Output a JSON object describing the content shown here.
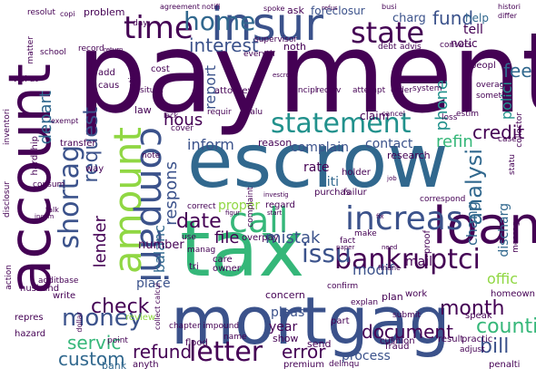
{
  "palette": {
    "background": "#ffffff",
    "purple": "#440154",
    "indigo": "#3b528b",
    "blue": "#31688e",
    "teal": "#21918c",
    "green": "#35b779",
    "lime": "#90d743",
    "yellow": "#fde725"
  },
  "words": [
    {
      "text": "payment",
      "color": "#440154"
    },
    {
      "text": "escrow",
      "color": "#31688e"
    },
    {
      "text": "mortgag",
      "color": "#3b528b"
    },
    {
      "text": "tax",
      "color": "#35b779"
    },
    {
      "text": "account",
      "color": "#440154"
    },
    {
      "text": "insur",
      "color": "#3b528b"
    },
    {
      "text": "loan",
      "color": "#440154"
    },
    {
      "text": "amount",
      "color": "#90d743"
    },
    {
      "text": "compani",
      "color": "#3b528b"
    },
    {
      "text": "call",
      "color": "#35b779"
    },
    {
      "text": "increas",
      "color": "#3b528b"
    },
    {
      "text": "statement",
      "color": "#21918c"
    },
    {
      "text": "state",
      "color": "#440154"
    },
    {
      "text": "time",
      "color": "#440154"
    },
    {
      "text": "home",
      "color": "#31688e"
    },
    {
      "text": "shortag",
      "color": "#3b528b"
    },
    {
      "text": "bankruptci",
      "color": "#440154"
    },
    {
      "text": "letter",
      "color": "#440154"
    },
    {
      "text": "money",
      "color": "#3b528b"
    },
    {
      "text": "issu",
      "color": "#3b528b"
    },
    {
      "text": "analysi",
      "color": "#31688e"
    },
    {
      "text": "request",
      "color": "#3b528b"
    },
    {
      "text": "date",
      "color": "#440154"
    },
    {
      "text": "check",
      "color": "#440154"
    },
    {
      "text": "month",
      "color": "#440154"
    },
    {
      "text": "servic",
      "color": "#35b779"
    },
    {
      "text": "refund",
      "color": "#440154"
    },
    {
      "text": "error",
      "color": "#440154"
    },
    {
      "text": "document",
      "color": "#440154"
    },
    {
      "text": "custom",
      "color": "#31688e"
    },
    {
      "text": "counti",
      "color": "#35b779"
    },
    {
      "text": "bill",
      "color": "#3b528b"
    },
    {
      "text": "fund",
      "color": "#3b528b"
    },
    {
      "text": "interest",
      "color": "#3b528b"
    },
    {
      "text": "credit",
      "color": "#440154"
    },
    {
      "text": "file",
      "color": "#440154"
    },
    {
      "text": "mistak",
      "color": "#3b528b"
    },
    {
      "text": "lender",
      "color": "#440154"
    },
    {
      "text": "depart",
      "color": "#31688e"
    },
    {
      "text": "report",
      "color": "#3b528b"
    },
    {
      "text": "respons",
      "color": "#3b528b"
    },
    {
      "text": "balanc",
      "color": "#31688e"
    },
    {
      "text": "refin",
      "color": "#35b779"
    },
    {
      "text": "hous",
      "color": "#440154"
    },
    {
      "text": "inform",
      "color": "#3b528b"
    },
    {
      "text": "phone",
      "color": "#21918c"
    },
    {
      "text": "fee",
      "color": "#31688e"
    },
    {
      "text": "chang",
      "color": "#31688e"
    },
    {
      "text": "modif",
      "color": "#3b528b"
    },
    {
      "text": "polici",
      "color": "#21918c"
    },
    {
      "text": "offic",
      "color": "#90d743"
    },
    {
      "text": "contact",
      "color": "#3b528b"
    },
    {
      "text": "complain",
      "color": "#3b528b"
    },
    {
      "text": "rate",
      "color": "#440154"
    },
    {
      "text": "citi",
      "color": "#31688e"
    },
    {
      "text": "discharg",
      "color": "#31688e"
    },
    {
      "text": "proper",
      "color": "#90d743"
    },
    {
      "text": "number",
      "color": "#440154"
    },
    {
      "text": "year",
      "color": "#440154"
    },
    {
      "text": "pleas",
      "color": "#3b528b"
    },
    {
      "text": "show",
      "color": "#440154"
    },
    {
      "text": "place",
      "color": "#3b528b"
    },
    {
      "text": "mail",
      "color": "#440154"
    },
    {
      "text": "process",
      "color": "#3b528b"
    },
    {
      "text": "send",
      "color": "#440154"
    },
    {
      "text": "ask",
      "color": "#440154"
    },
    {
      "text": "foreclosur",
      "color": "#3b528b"
    },
    {
      "text": "charg",
      "color": "#3b528b"
    },
    {
      "text": "tell",
      "color": "#440154"
    },
    {
      "text": "help",
      "color": "#31688e"
    },
    {
      "text": "notic",
      "color": "#440154"
    },
    {
      "text": "problem",
      "color": "#440154"
    },
    {
      "text": "attorney",
      "color": "#440154"
    },
    {
      "text": "law",
      "color": "#440154"
    },
    {
      "text": "noth",
      "color": "#440154"
    },
    {
      "text": "cost",
      "color": "#440154"
    },
    {
      "text": "claim",
      "color": "#440154"
    },
    {
      "text": "research",
      "color": "#440154"
    },
    {
      "text": "concern",
      "color": "#440154"
    },
    {
      "text": "review",
      "color": "#90d743"
    },
    {
      "text": "flood",
      "color": "#440154"
    },
    {
      "text": "bank",
      "color": "#31688e"
    },
    {
      "text": "anyth",
      "color": "#440154"
    },
    {
      "text": "fraud",
      "color": "#440154"
    },
    {
      "text": "result",
      "color": "#440154"
    },
    {
      "text": "practic",
      "color": "#440154"
    },
    {
      "text": "penalti",
      "color": "#440154"
    },
    {
      "text": "premium",
      "color": "#440154"
    },
    {
      "text": "delinqu",
      "color": "#440154"
    },
    {
      "text": "overpay",
      "color": "#440154"
    },
    {
      "text": "plan",
      "color": "#440154"
    },
    {
      "text": "part",
      "color": "#440154"
    },
    {
      "text": "transfer",
      "color": "#440154"
    },
    {
      "text": "hardship",
      "color": "#440154"
    },
    {
      "text": "consum",
      "color": "#440154"
    },
    {
      "text": "school",
      "color": "#440154"
    },
    {
      "text": "matter",
      "color": "#440154"
    },
    {
      "text": "record",
      "color": "#440154"
    },
    {
      "text": "supervisor",
      "color": "#440154"
    },
    {
      "text": "advis",
      "color": "#440154"
    },
    {
      "text": "convers",
      "color": "#440154"
    },
    {
      "text": "peopl",
      "color": "#440154"
    },
    {
      "text": "overag",
      "color": "#440154"
    },
    {
      "text": "someth",
      "color": "#440154"
    },
    {
      "text": "estim",
      "color": "#440154"
    },
    {
      "text": "loss",
      "color": "#440154"
    },
    {
      "text": "case",
      "color": "#440154"
    },
    {
      "text": "collector",
      "color": "#440154"
    },
    {
      "text": "system",
      "color": "#440154"
    },
    {
      "text": "order",
      "color": "#440154"
    },
    {
      "text": "attempt",
      "color": "#440154"
    },
    {
      "text": "principl",
      "color": "#440154"
    },
    {
      "text": "receiv",
      "color": "#440154"
    },
    {
      "text": "cancel",
      "color": "#440154"
    },
    {
      "text": "valu",
      "color": "#440154"
    },
    {
      "text": "everyth",
      "color": "#440154"
    },
    {
      "text": "debt",
      "color": "#440154"
    },
    {
      "text": "resolut",
      "color": "#440154"
    },
    {
      "text": "viol at",
      "color": "#440154"
    },
    {
      "text": "inventori",
      "color": "#440154"
    },
    {
      "text": "disclosur",
      "color": "#440154"
    },
    {
      "text": "repres",
      "color": "#440154"
    },
    {
      "text": "hazard",
      "color": "#440154"
    },
    {
      "text": "husband",
      "color": "#440154"
    },
    {
      "text": "action",
      "color": "#440154"
    },
    {
      "text": "write",
      "color": "#440154"
    },
    {
      "text": "additbase",
      "color": "#440154"
    },
    {
      "text": "dollar",
      "color": "#440154"
    },
    {
      "text": "point",
      "color": "#440154"
    },
    {
      "text": "name",
      "color": "#440154"
    },
    {
      "text": "care",
      "color": "#440154"
    },
    {
      "text": "owner",
      "color": "#440154"
    },
    {
      "text": "tri",
      "color": "#440154"
    },
    {
      "text": "use",
      "color": "#440154"
    },
    {
      "text": "manag",
      "color": "#440154"
    },
    {
      "text": "regard",
      "color": "#440154"
    },
    {
      "text": "correct",
      "color": "#440154"
    },
    {
      "text": "purchas",
      "color": "#440154"
    },
    {
      "text": "holder",
      "color": "#440154"
    },
    {
      "text": "failur",
      "color": "#440154"
    },
    {
      "text": "complaint",
      "color": "#440154"
    },
    {
      "text": "reason",
      "color": "#440154"
    },
    {
      "text": "situat",
      "color": "#440154"
    },
    {
      "text": "cover",
      "color": "#440154"
    },
    {
      "text": "lack",
      "color": "#440154"
    },
    {
      "text": "requir",
      "color": "#440154"
    },
    {
      "text": "option",
      "color": "#440154"
    },
    {
      "text": "caus",
      "color": "#440154"
    },
    {
      "text": "add",
      "color": "#440154"
    },
    {
      "text": "way",
      "color": "#440154"
    },
    {
      "text": "note",
      "color": "#440154"
    },
    {
      "text": "cushion",
      "color": "#440154"
    },
    {
      "text": "submit",
      "color": "#440154"
    },
    {
      "text": "speak",
      "color": "#440154"
    },
    {
      "text": "homeown",
      "color": "#440154"
    },
    {
      "text": "adjust",
      "color": "#440154"
    },
    {
      "text": "make",
      "color": "#440154"
    },
    {
      "text": "confirm",
      "color": "#440154"
    },
    {
      "text": "explan",
      "color": "#440154"
    },
    {
      "text": "chapter impound",
      "color": "#440154"
    },
    {
      "text": "fact",
      "color": "#440154"
    },
    {
      "text": "proof",
      "color": "#440154"
    },
    {
      "text": "correspond",
      "color": "#440154"
    },
    {
      "text": "statu",
      "color": "#440154"
    },
    {
      "text": "messag",
      "color": "#440154"
    },
    {
      "text": "work",
      "color": "#440154"
    },
    {
      "text": "day",
      "color": "#440154"
    },
    {
      "text": "agreement",
      "color": "#440154"
    },
    {
      "text": "notifi",
      "color": "#440154"
    },
    {
      "text": "spoke",
      "color": "#440154"
    },
    {
      "text": "busi",
      "color": "#440154"
    },
    {
      "text": "histori",
      "color": "#440154"
    },
    {
      "text": "differ",
      "color": "#440154"
    },
    {
      "text": "return",
      "color": "#440154"
    },
    {
      "text": "project",
      "color": "#440154"
    },
    {
      "text": "exempt",
      "color": "#440154"
    },
    {
      "text": "copi",
      "color": "#440154"
    },
    {
      "text": "talk",
      "color": "#440154"
    },
    {
      "text": "incom",
      "color": "#440154"
    },
    {
      "text": "figur",
      "color": "#440154"
    },
    {
      "text": "job",
      "color": "#440154"
    },
    {
      "text": "paper",
      "color": "#440154"
    },
    {
      "text": "need",
      "color": "#440154"
    },
    {
      "text": "financ",
      "color": "#440154"
    },
    {
      "text": "refus",
      "color": "#440154"
    },
    {
      "text": "start",
      "color": "#440154"
    },
    {
      "text": "fix",
      "color": "#440154"
    },
    {
      "text": "collect calcul",
      "color": "#440154"
    },
    {
      "text": "investig",
      "color": "#440154"
    },
    {
      "text": "escrow",
      "color": "#440154"
    }
  ]
}
